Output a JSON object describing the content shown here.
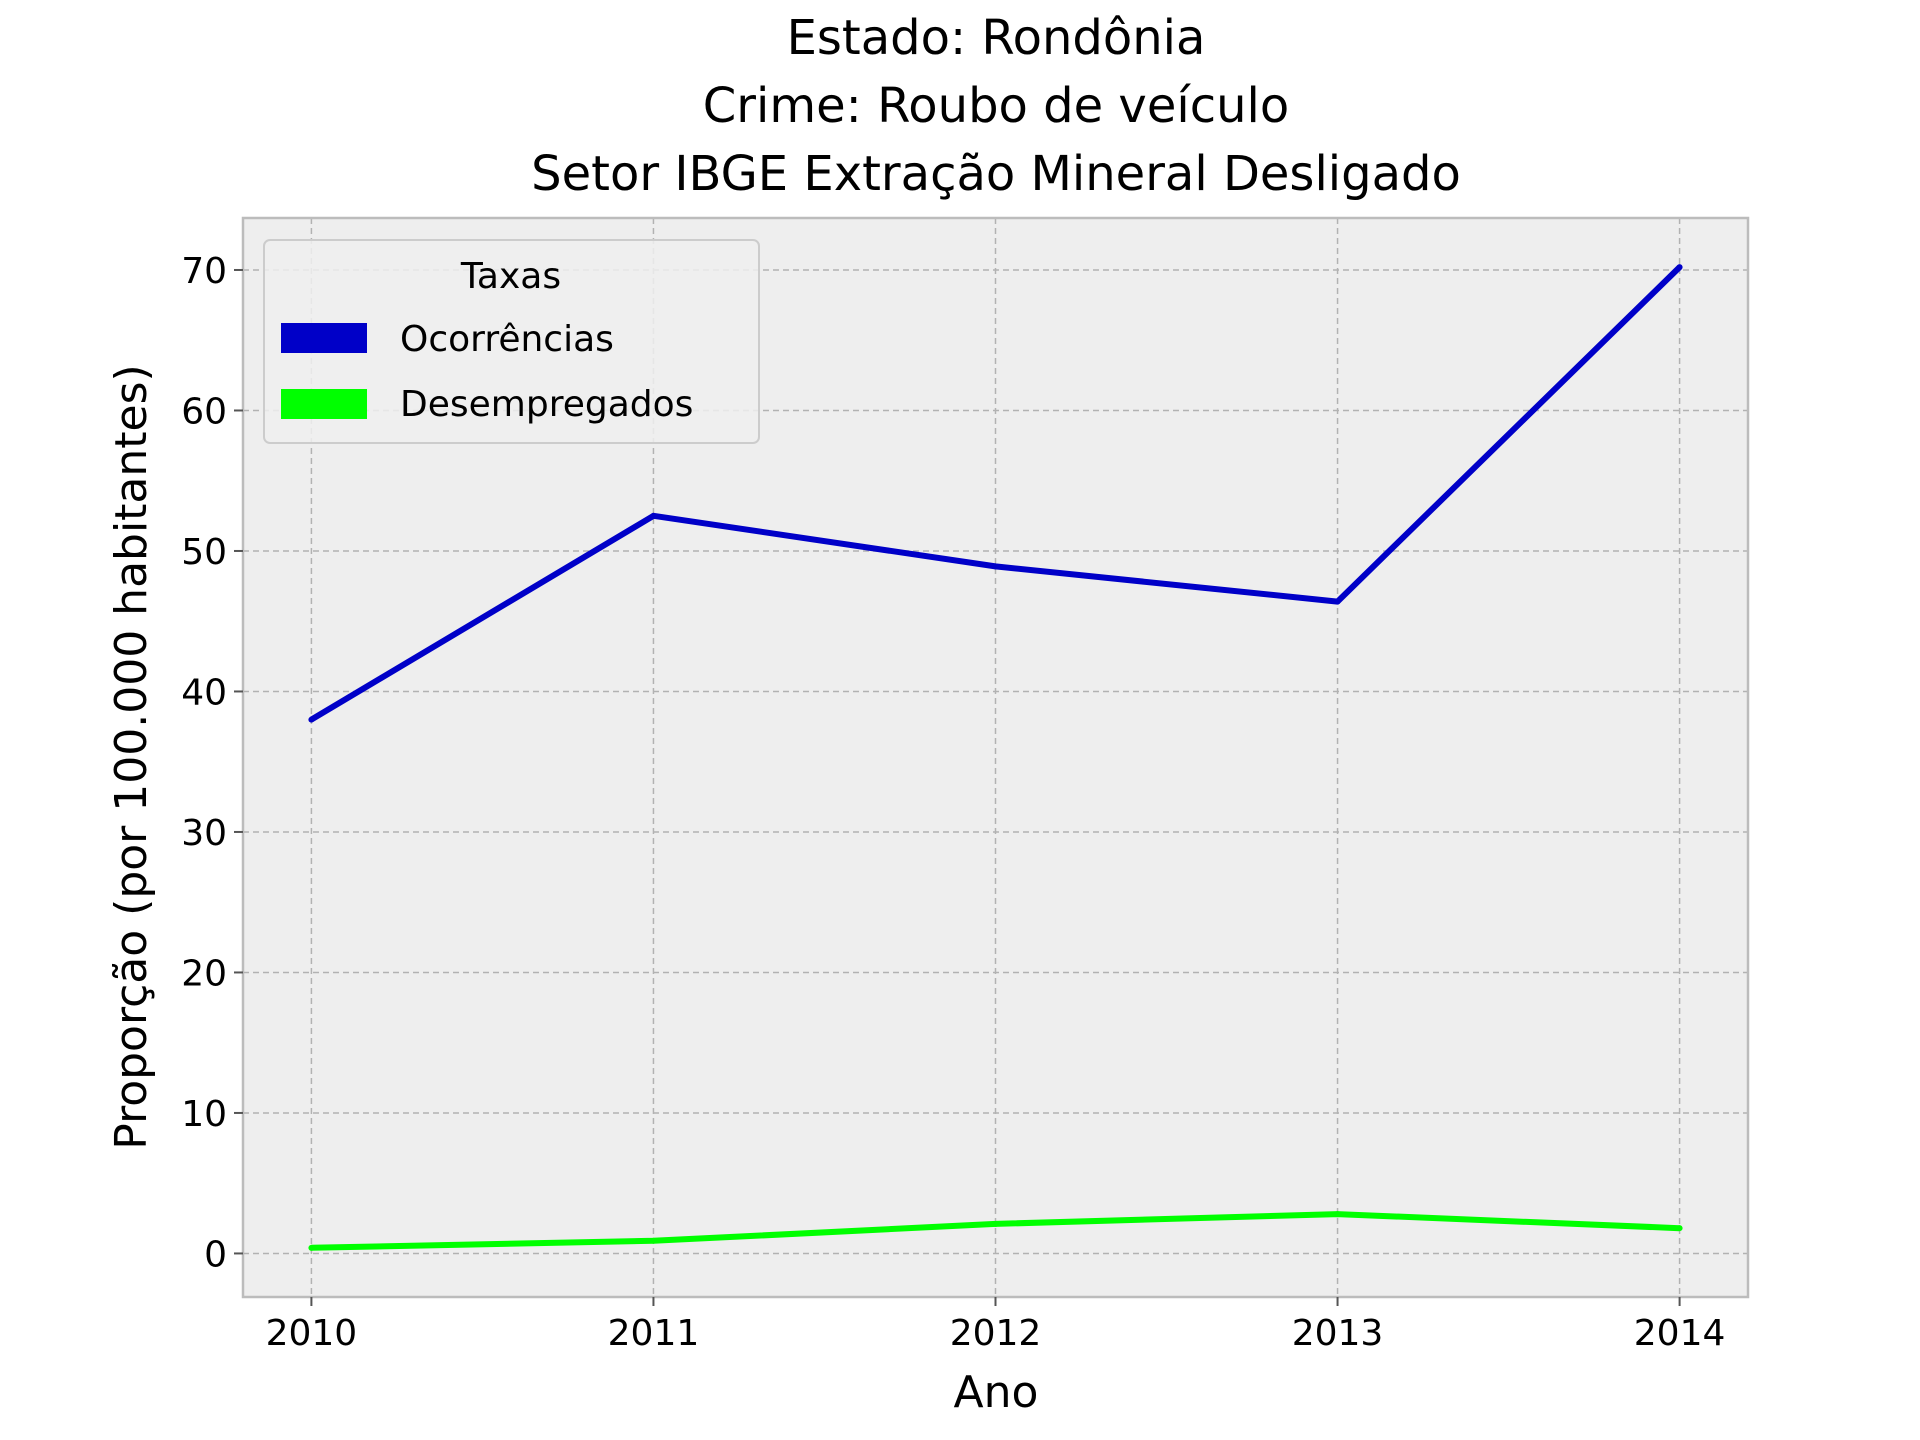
{
  "chart_data": {
    "type": "line",
    "title_lines": [
      "Estado: Rondônia",
      "Crime: Roubo de veículo",
      "Setor IBGE  Extração Mineral   Desligado"
    ],
    "xlabel": "Ano",
    "ylabel": "Proporção (por 100.000 habitantes)",
    "x": [
      2010,
      2011,
      2012,
      2013,
      2014
    ],
    "xlim": [
      2009.8,
      2014.2
    ],
    "ylim": [
      -3.1,
      73.7
    ],
    "yticks": [
      0,
      10,
      20,
      30,
      40,
      50,
      60,
      70
    ],
    "grid": true,
    "legend": {
      "title": "Taxas",
      "placement": "top-left"
    },
    "series": [
      {
        "name": "Ocorrências",
        "color": "#0000c8",
        "values": [
          38.0,
          52.5,
          48.9,
          46.4,
          70.2
        ]
      },
      {
        "name": "Desempregados",
        "color": "#00ff00",
        "values": [
          0.4,
          0.9,
          2.1,
          2.8,
          1.8
        ]
      }
    ]
  }
}
